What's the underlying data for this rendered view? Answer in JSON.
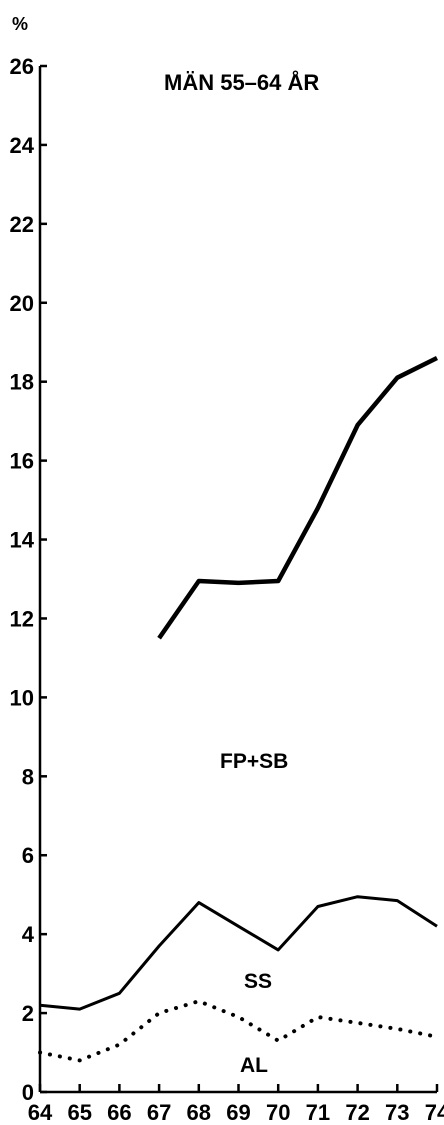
{
  "chart_data": {
    "type": "line",
    "title": "MÄN 55–64 ÅR",
    "ylabel": "%",
    "xlabel": "",
    "x": [
      "64",
      "65",
      "66",
      "67",
      "68",
      "69",
      "70",
      "71",
      "72",
      "73",
      "74"
    ],
    "xlim": [
      64,
      74
    ],
    "ylim": [
      0,
      26
    ],
    "yticks": [
      0,
      2,
      4,
      6,
      8,
      10,
      12,
      14,
      16,
      18,
      20,
      22,
      24,
      26
    ],
    "grid": false,
    "series": [
      {
        "name": "FP+SB",
        "style": "thick-solid",
        "x": [
          67,
          68,
          69,
          70,
          71,
          72,
          73,
          74
        ],
        "values": [
          11.5,
          12.95,
          12.9,
          12.95,
          14.8,
          16.9,
          18.1,
          18.6
        ]
      },
      {
        "name": "SS",
        "style": "thin-solid",
        "x": [
          64,
          65,
          66,
          67,
          68,
          69,
          70,
          71,
          72,
          73,
          74
        ],
        "values": [
          2.2,
          2.1,
          2.5,
          3.7,
          4.8,
          4.2,
          3.6,
          4.7,
          4.95,
          4.85,
          4.2
        ]
      },
      {
        "name": "AL",
        "style": "dotted",
        "x": [
          64,
          65,
          66,
          67,
          68,
          69,
          70,
          71,
          72,
          73,
          74
        ],
        "values": [
          1.0,
          0.8,
          1.2,
          2.0,
          2.3,
          1.9,
          1.3,
          1.9,
          1.75,
          1.6,
          1.4
        ]
      }
    ]
  }
}
